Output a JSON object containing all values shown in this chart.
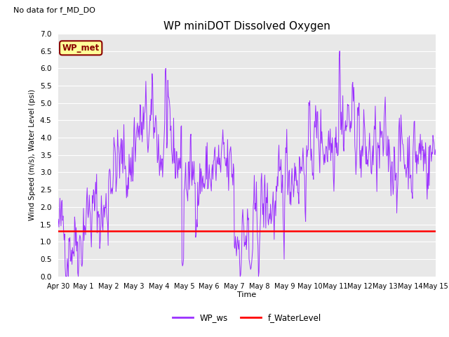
{
  "title": "WP miniDOT Dissolved Oxygen",
  "no_data_label": "No data for f_MD_DO",
  "wp_met_label": "WP_met",
  "ylabel": "Wind Speed (m/s), Water Level (psi)",
  "xlabel": "Time",
  "ylim": [
    0.0,
    7.0
  ],
  "yticks": [
    0.0,
    0.5,
    1.0,
    1.5,
    2.0,
    2.5,
    3.0,
    3.5,
    4.0,
    4.5,
    5.0,
    5.5,
    6.0,
    6.5,
    7.0
  ],
  "water_level_value": 1.3,
  "wp_ws_color": "#9B30FF",
  "water_level_color": "#FF0000",
  "background_color": "#E8E8E8",
  "legend_ws_label": "WP_ws",
  "legend_wl_label": "f_WaterLevel",
  "wp_met_bg": "#FFFF99",
  "wp_met_border": "#8B0000",
  "seed": 42
}
